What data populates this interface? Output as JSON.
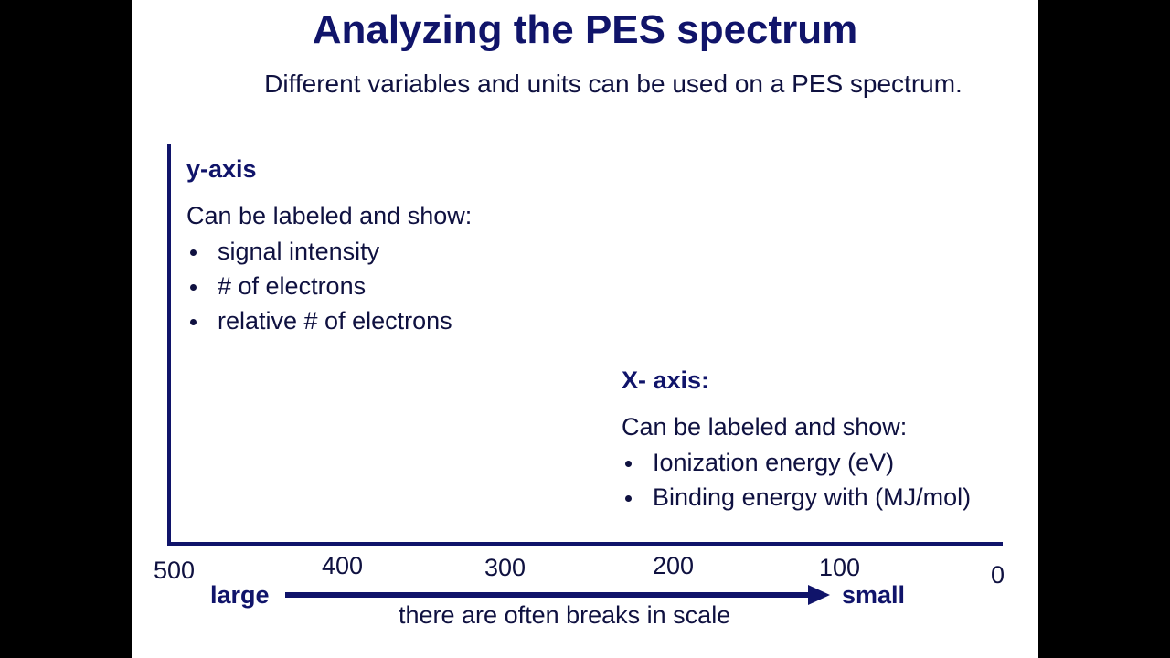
{
  "slide": {
    "title": "Analyzing the PES spectrum",
    "subtitle": "Different variables and units can be used on a  PES spectrum."
  },
  "y_axis": {
    "heading": "y-axis",
    "intro": "Can be labeled and show:",
    "items": [
      "signal intensity",
      "# of electrons",
      "relative # of electrons"
    ]
  },
  "x_axis": {
    "heading": "X- axis:",
    "intro": "Can be labeled and show:",
    "items": [
      "Ionization energy (eV)",
      "Binding energy with (MJ/mol)"
    ]
  },
  "scale": {
    "ticks": [
      "500",
      "400",
      "300",
      "200",
      "100",
      "0"
    ],
    "left_label": "large",
    "right_label": "small",
    "note": "there are often breaks in scale"
  },
  "colors": {
    "accent": "#10146a",
    "text": "#0f1140",
    "background": "#ffffff"
  }
}
